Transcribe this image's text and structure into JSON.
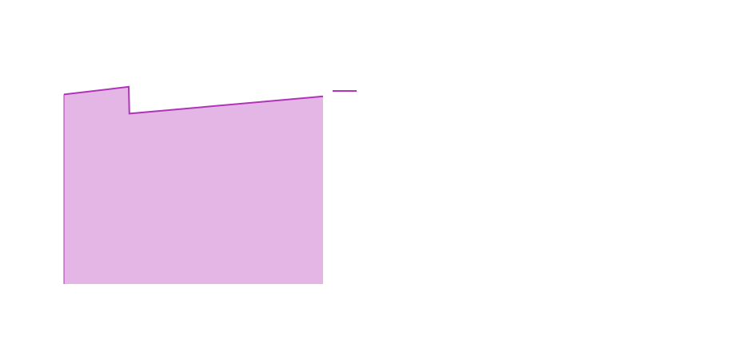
{
  "chart_data": {
    "type": "area",
    "x": [
      0,
      1,
      1.01,
      4
    ],
    "series": [
      {
        "values": [
          99,
          103,
          89,
          98
        ],
        "color": "#b033b8",
        "fill": "#e3b6e5"
      }
    ],
    "xlim": [
      0,
      4
    ],
    "ylim": [
      0,
      140
    ],
    "grid": false,
    "legend": "right",
    "legend_entries": [
      {
        "label": "",
        "color": "#b033b8"
      }
    ]
  }
}
